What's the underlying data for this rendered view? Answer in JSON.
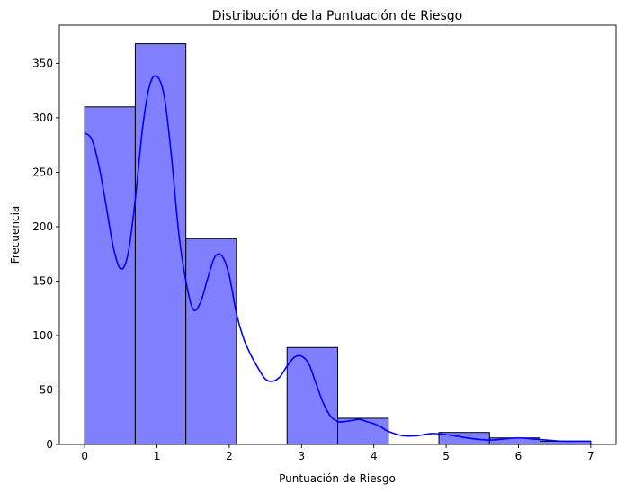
{
  "chart_data": {
    "type": "bar",
    "title": "Distribución de la Puntuación de Riesgo",
    "xlabel": "Puntuación de Riesgo",
    "ylabel": "Frecuencia",
    "xlim": [
      -0.35,
      7.35
    ],
    "ylim": [
      0,
      385
    ],
    "xticks": [
      0,
      1,
      2,
      3,
      4,
      5,
      6,
      7
    ],
    "yticks": [
      0,
      50,
      100,
      150,
      200,
      250,
      300,
      350
    ],
    "grid": false,
    "bins": [
      {
        "x0": 0.0,
        "x1": 0.7,
        "count": 310
      },
      {
        "x0": 0.7,
        "x1": 1.4,
        "count": 368
      },
      {
        "x0": 1.4,
        "x1": 2.1,
        "count": 189
      },
      {
        "x0": 2.1,
        "x1": 2.8,
        "count": 0
      },
      {
        "x0": 2.8,
        "x1": 3.5,
        "count": 89
      },
      {
        "x0": 3.5,
        "x1": 4.2,
        "count": 24
      },
      {
        "x0": 4.2,
        "x1": 4.9,
        "count": 0
      },
      {
        "x0": 4.9,
        "x1": 5.6,
        "count": 11
      },
      {
        "x0": 5.6,
        "x1": 6.3,
        "count": 6
      },
      {
        "x0": 6.3,
        "x1": 7.0,
        "count": 3
      }
    ],
    "kde": {
      "x": [
        0,
        0.1,
        0.2,
        0.3,
        0.4,
        0.5,
        0.6,
        0.7,
        0.8,
        0.9,
        1.0,
        1.1,
        1.2,
        1.3,
        1.4,
        1.5,
        1.6,
        1.7,
        1.8,
        1.9,
        2.0,
        2.1,
        2.2,
        2.3,
        2.4,
        2.5,
        2.6,
        2.7,
        2.8,
        2.9,
        3.0,
        3.1,
        3.2,
        3.3,
        3.4,
        3.5,
        3.6,
        3.7,
        3.8,
        3.9,
        4.0,
        4.1,
        4.2,
        4.4,
        4.6,
        4.8,
        5.0,
        5.2,
        5.4,
        5.6,
        5.8,
        6.0,
        6.2,
        6.4,
        6.6,
        6.8,
        7.0
      ],
      "y": [
        286,
        280,
        255,
        218,
        180,
        161,
        175,
        225,
        290,
        330,
        338,
        320,
        265,
        195,
        150,
        124,
        130,
        152,
        172,
        173,
        155,
        120,
        97,
        82,
        70,
        60,
        58,
        62,
        72,
        80,
        81,
        74,
        56,
        38,
        26,
        21,
        21,
        22,
        23,
        21,
        19,
        16,
        12,
        8,
        8,
        10,
        9,
        7,
        5,
        4,
        5,
        6,
        5,
        4,
        3,
        3,
        3
      ]
    },
    "colors": {
      "bar_fill": "#8080ff",
      "bar_edge": "#000000",
      "kde_line": "#0000ff"
    }
  }
}
